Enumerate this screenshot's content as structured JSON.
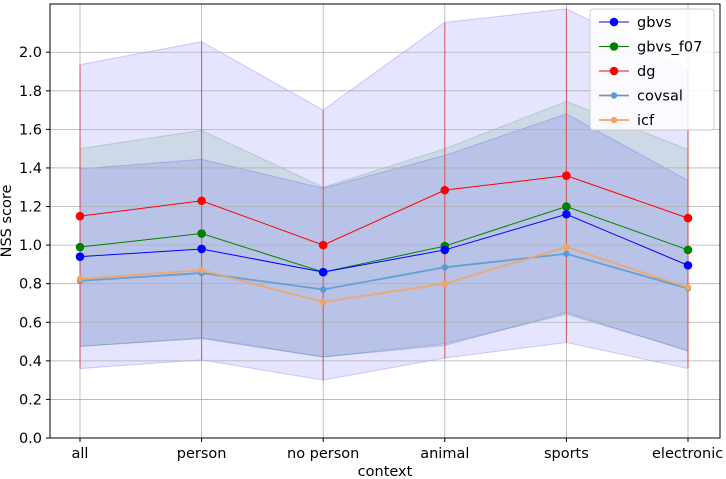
{
  "chart_data": {
    "type": "line",
    "xlabel": "context",
    "ylabel": "NSS score",
    "categories": [
      "all",
      "person",
      "no person",
      "animal",
      "sports",
      "electronic"
    ],
    "ylim": [
      0,
      2.25
    ],
    "yticks": [
      "0.0",
      "0.2",
      "0.4",
      "0.6",
      "0.8",
      "1.0",
      "1.2",
      "1.4",
      "1.6",
      "1.8",
      "2.0"
    ],
    "grid": true,
    "legend_position": "top-right",
    "series": [
      {
        "name": "gbvs",
        "color": "#0000ff",
        "values": [
          0.94,
          0.98,
          0.86,
          0.975,
          1.16,
          0.895
        ],
        "band_low": [
          0.475,
          0.515,
          0.42,
          0.48,
          0.65,
          0.45
        ],
        "band_high": [
          1.395,
          1.445,
          1.295,
          1.465,
          1.68,
          1.335
        ],
        "band_color": "#0000ff",
        "band_opacity": 0.1
      },
      {
        "name": "gbvs_f07",
        "color": "#008000",
        "values": [
          0.99,
          1.06,
          0.86,
          0.995,
          1.2,
          0.975
        ],
        "band_low": [
          0.475,
          0.52,
          0.42,
          0.49,
          0.64,
          0.455
        ],
        "band_high": [
          1.5,
          1.595,
          1.3,
          1.5,
          1.745,
          1.495
        ],
        "band_color": "#008000",
        "band_opacity": 0.1
      },
      {
        "name": "dg",
        "color": "#ff0000",
        "values": [
          1.15,
          1.23,
          1.0,
          1.285,
          1.36,
          1.14
        ],
        "band_low": [
          0.36,
          0.405,
          0.3,
          0.415,
          0.495,
          0.36
        ],
        "band_high": [
          1.935,
          2.055,
          1.7,
          2.155,
          2.225,
          1.915
        ],
        "band_color": "#0000ff",
        "band_opacity": 0.1
      },
      {
        "name": "covsal",
        "color": "#5b9bd5",
        "values": [
          0.815,
          0.855,
          0.77,
          0.885,
          0.955,
          0.775
        ],
        "band_low": [],
        "band_high": []
      },
      {
        "name": "icf",
        "color": "#f4a460",
        "values": [
          0.825,
          0.87,
          0.705,
          0.8,
          0.99,
          0.78
        ],
        "band_low": [],
        "band_high": []
      }
    ]
  }
}
